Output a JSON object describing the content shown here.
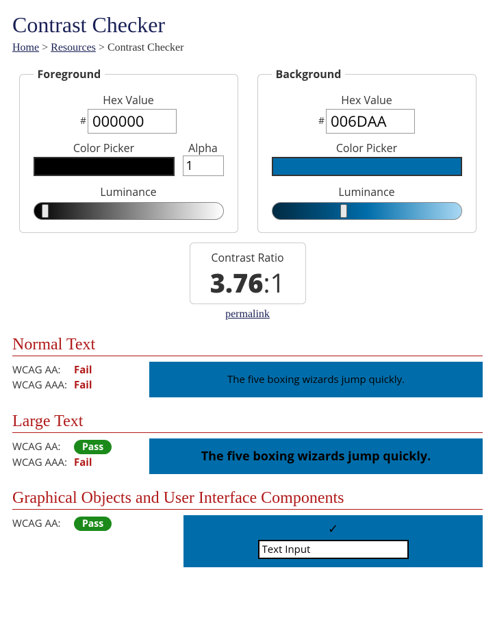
{
  "title": "Contrast Checker",
  "breadcrumb": {
    "home": "Home",
    "resources": "Resources",
    "current": "Contrast Checker",
    "sep": " > "
  },
  "panels": {
    "fg": {
      "legend": "Foreground",
      "hex_label": "Hex Value",
      "hex_value": "000000",
      "picker_label": "Color Picker",
      "alpha_label": "Alpha",
      "alpha_value": "1",
      "swatch_color": "#000000",
      "lum_label": "Luminance",
      "lum_gradient_from": "#000000",
      "lum_gradient_to": "#ffffff",
      "lum_thumb_pct": 6
    },
    "bg": {
      "legend": "Background",
      "hex_label": "Hex Value",
      "hex_value": "006DAA",
      "picker_label": "Color Picker",
      "swatch_color": "#006DAA",
      "lum_label": "Luminance",
      "lum_gradient_from": "#002a42",
      "lum_gradient_mid": "#006DAA",
      "lum_gradient_to": "#a9d8f3",
      "lum_thumb_pct": 38
    }
  },
  "ratio": {
    "label": "Contrast Ratio",
    "value": "3.76",
    "suffix": ":1",
    "permalink": "permalink"
  },
  "sections": {
    "normal": {
      "heading": "Normal Text",
      "aa_label": "WCAG AA:",
      "aa_result": "Fail",
      "aa_pass": false,
      "aaa_label": "WCAG AAA:",
      "aaa_result": "Fail",
      "aaa_pass": false,
      "sample": "The five boxing wizards jump quickly."
    },
    "large": {
      "heading": "Large Text",
      "aa_label": "WCAG AA:",
      "aa_result": "Pass",
      "aa_pass": true,
      "aaa_label": "WCAG AAA:",
      "aaa_result": "Fail",
      "aaa_pass": false,
      "sample": "The five boxing wizards jump quickly."
    },
    "ui": {
      "heading": "Graphical Objects and User Interface Components",
      "aa_label": "WCAG AA:",
      "aa_result": "Pass",
      "aa_pass": true,
      "check": "✓",
      "input_value": "Text Input"
    }
  },
  "colors": {
    "foreground": "#000000",
    "background": "#006DAA",
    "heading": "#b01818",
    "title": "#1a2156",
    "pass_badge": "#1b8a1b"
  }
}
